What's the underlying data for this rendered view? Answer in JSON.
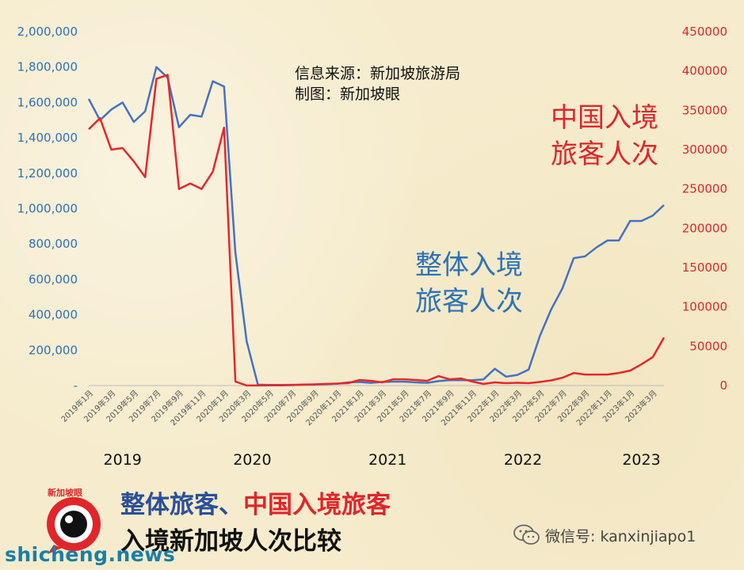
{
  "chart_data": {
    "type": "line",
    "source_lines": [
      "信息来源：新加坡旅游局",
      "制图：新加坡眼"
    ],
    "annotations": {
      "china_label": [
        "中国入境",
        "旅客人次"
      ],
      "total_label": [
        "整体入境",
        "旅客人次"
      ]
    },
    "y_left": {
      "ticks": [
        "-",
        "200,000",
        "400,000",
        "600,000",
        "800,000",
        "1,000,000",
        "1,200,000",
        "1,400,000",
        "1,600,000",
        "1,800,000",
        "2,000,000"
      ],
      "range": [
        0,
        2000000
      ],
      "color": "#2e72b8"
    },
    "y_right": {
      "ticks": [
        "0",
        "50000",
        "100000",
        "150000",
        "200000",
        "250000",
        "300000",
        "350000",
        "400000",
        "450000"
      ],
      "range": [
        0,
        450000
      ],
      "color": "#e1252b"
    },
    "x_labels": [
      "2019年1月",
      "2019年3月",
      "2019年5月",
      "2019年7月",
      "2019年9月",
      "2019年11月",
      "2020年1月",
      "2020年3月",
      "2020年5月",
      "2020年7月",
      "2020年9月",
      "2020年11月",
      "2021年1月",
      "2021年3月",
      "2021年5月",
      "2021年7月",
      "2021年9月",
      "2021年11月",
      "2022年1月",
      "2022年3月",
      "2022年5月",
      "2022年7月",
      "2022年9月",
      "2022年11月",
      "2023年1月",
      "2023年3月"
    ],
    "years": [
      "2019",
      "2020",
      "2021",
      "2022",
      "2023"
    ],
    "series": [
      {
        "name": "整体入境旅客人次",
        "axis": "left",
        "color": "#4472c4",
        "values": [
          1620000,
          1500000,
          1560000,
          1600000,
          1490000,
          1550000,
          1800000,
          1740000,
          1460000,
          1530000,
          1520000,
          1720000,
          1690000,
          750000,
          250000,
          5000,
          3000,
          3000,
          4000,
          5000,
          6000,
          8000,
          10000,
          18000,
          20000,
          15000,
          20000,
          22000,
          22000,
          18000,
          15000,
          25000,
          30000,
          30000,
          30000,
          35000,
          95000,
          50000,
          60000,
          90000,
          280000,
          430000,
          550000,
          720000,
          730000,
          780000,
          820000,
          820000,
          930000,
          930000,
          960000,
          1020000
        ]
      },
      {
        "name": "中国入境旅客人次",
        "axis": "right",
        "color": "#e8262b",
        "values": [
          326000,
          340000,
          300000,
          302000,
          285000,
          265000,
          390000,
          395000,
          250000,
          257000,
          250000,
          272000,
          328000,
          5000,
          100,
          100,
          200,
          300,
          500,
          1200,
          1500,
          2000,
          2500,
          3000,
          7000,
          6000,
          4000,
          8000,
          8000,
          7000,
          6000,
          12000,
          8000,
          9000,
          5000,
          2000,
          4000,
          3000,
          3500,
          3000,
          4500,
          6500,
          10000,
          16000,
          14000,
          14000,
          14000,
          16000,
          19000,
          27000,
          36000,
          61000
        ]
      }
    ]
  },
  "footer": {
    "line1_blue": "整体旅客、",
    "line1_red": "中国入境旅客",
    "line2": "入境新加坡人次比较"
  },
  "logo": {
    "text": "新加坡眼",
    "icon": "eye-logo-icon",
    "color": "#e1252b"
  },
  "wechat": {
    "icon": "wechat-icon",
    "text": "微信号: kanxinjiapo1"
  },
  "watermark": "shicheng.news"
}
